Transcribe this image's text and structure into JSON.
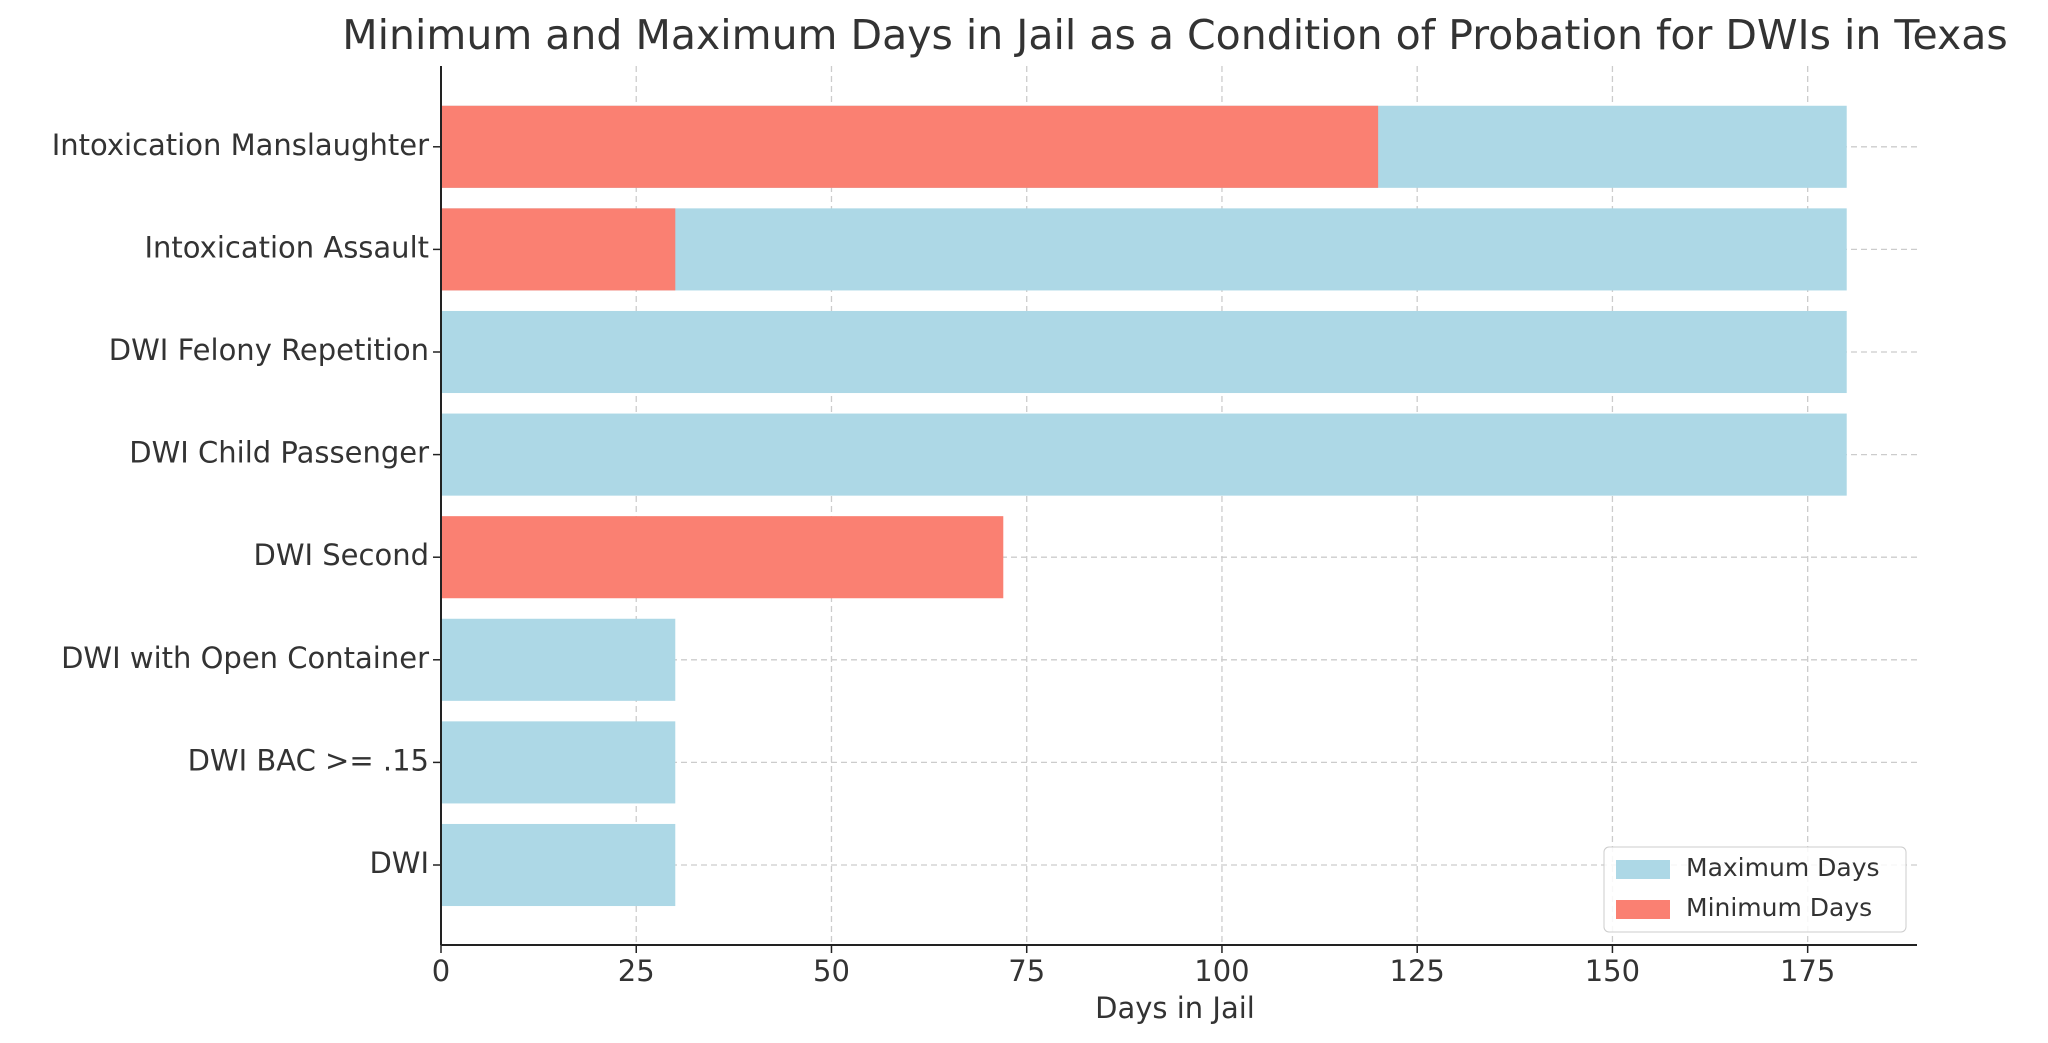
{
  "chart_data": {
    "type": "barh-overlay",
    "title": "Minimum and Maximum Days in Jail as a Condition of Probation for DWIs in Texas",
    "xlabel": "Days in Jail",
    "categories": [
      "DWI",
      "DWI BAC >= .15",
      "DWI with Open Container",
      "DWI Second",
      "DWI Child Passenger",
      "DWI Felony Repetition",
      "Intoxication Assault",
      "Intoxication Manslaughter"
    ],
    "series": [
      {
        "name": "Maximum Days",
        "color": "#add8e6",
        "values": [
          30,
          30,
          30,
          0,
          180,
          180,
          180,
          180
        ]
      },
      {
        "name": "Minimum Days",
        "color": "#fa8072",
        "values": [
          0,
          0,
          0,
          72,
          0,
          0,
          30,
          120
        ]
      }
    ],
    "xlim": [
      0,
      189
    ],
    "xticks": [
      0,
      25,
      50,
      75,
      100,
      125,
      150,
      175
    ],
    "grid": true,
    "legend": "lower right"
  }
}
